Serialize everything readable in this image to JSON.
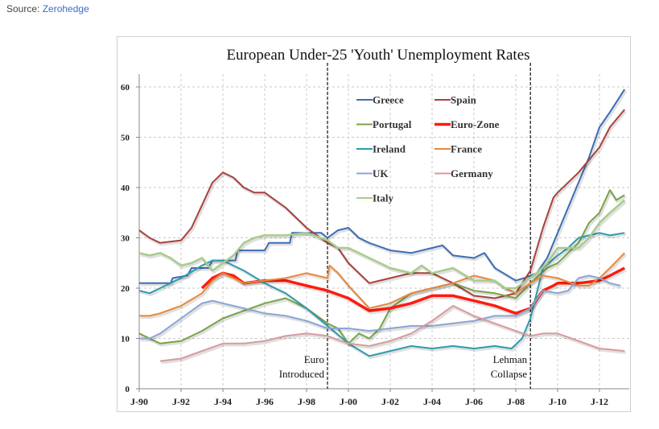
{
  "source": {
    "label": "Source: ",
    "link": "Zerohedge"
  },
  "chart_data": {
    "type": "line",
    "title": "European Under-25 'Youth' Unemployment Rates",
    "xlabel": "",
    "ylabel": "",
    "xlim": [
      1990,
      2013.3
    ],
    "ylim": [
      0,
      63
    ],
    "yticks": [
      0,
      10,
      20,
      30,
      40,
      50,
      60
    ],
    "xticks": [
      {
        "x": 1990,
        "label": "J-90"
      },
      {
        "x": 1992,
        "label": "J-92"
      },
      {
        "x": 1994,
        "label": "J-94"
      },
      {
        "x": 1996,
        "label": "J-96"
      },
      {
        "x": 1998,
        "label": "J-98"
      },
      {
        "x": 2000,
        "label": "J-00"
      },
      {
        "x": 2002,
        "label": "J-02"
      },
      {
        "x": 2004,
        "label": "J-04"
      },
      {
        "x": 2006,
        "label": "J-06"
      },
      {
        "x": 2008,
        "label": "J-08"
      },
      {
        "x": 2010,
        "label": "J-10"
      },
      {
        "x": 2012,
        "label": "J-12"
      }
    ],
    "grid": true,
    "legend": "top-center",
    "annotations": [
      {
        "x": 1999.0,
        "lines": [
          "Euro",
          "Introduced"
        ],
        "style": "dashed-vertical"
      },
      {
        "x": 2008.7,
        "lines": [
          "Lehman",
          "Collapse"
        ],
        "style": "dashed-vertical"
      }
    ],
    "series": [
      {
        "name": "Greece",
        "color": "#3e6db5",
        "width": 2,
        "x": [
          1990,
          1991.5,
          1991.6,
          1992.3,
          1992.5,
          1993.3,
          1993.5,
          1994.6,
          1994.7,
          1996,
          1996.2,
          1997.2,
          1997.3,
          1998.7,
          1999,
          1999.5,
          2000,
          2000.5,
          2001,
          2002,
          2003,
          2004,
          2004.5,
          2005,
          2006,
          2006.5,
          2007,
          2008,
          2008.4,
          2008.7,
          2009,
          2009.5,
          2010,
          2010.5,
          2011,
          2011.5,
          2012,
          2012.5,
          2013.2
        ],
        "y": [
          21,
          21,
          22,
          22.5,
          24,
          24,
          25.5,
          25.5,
          27.5,
          27.5,
          29,
          29,
          31,
          31,
          30,
          31.5,
          32,
          30,
          29,
          27.5,
          27,
          28,
          28.5,
          26.5,
          26,
          27,
          24,
          21.5,
          22,
          22.5,
          23,
          26,
          31,
          36,
          41,
          46,
          52,
          55,
          59.5
        ]
      },
      {
        "name": "Spain",
        "color": "#a9413e",
        "width": 2,
        "x": [
          1990,
          1990.5,
          1991,
          1992,
          1992.5,
          1993,
          1993.5,
          1994,
          1994.5,
          1995,
          1995.5,
          1996,
          1997,
          1998,
          1999,
          1999.5,
          2000,
          2001,
          2001.5,
          2002,
          2003,
          2004,
          2005,
          2006,
          2007,
          2008,
          2008.7,
          2009.3,
          2009.8,
          2010,
          2011,
          2012,
          2012.5,
          2013.2
        ],
        "y": [
          31.5,
          30,
          29,
          29.5,
          32,
          36.5,
          41,
          43,
          42,
          40,
          39,
          39,
          36,
          32,
          29,
          28,
          25,
          21,
          21.5,
          22,
          23,
          23,
          21,
          18.5,
          18,
          19,
          23.5,
          32,
          38,
          39,
          43,
          48,
          52,
          55.5
        ]
      },
      {
        "name": "Portugal",
        "color": "#77a447",
        "width": 2,
        "x": [
          1990,
          1991,
          1992,
          1993,
          1994,
          1995,
          1996,
          1997,
          1998,
          1999,
          1999.5,
          2000,
          2000.5,
          2001,
          2001.5,
          2002,
          2003,
          2004,
          2005,
          2006,
          2007,
          2008,
          2008.7,
          2009.5,
          2010,
          2011,
          2011.5,
          2012,
          2012.5,
          2012.8,
          2013.2
        ],
        "y": [
          11,
          9,
          9.5,
          11.5,
          14,
          15.5,
          17,
          18,
          16,
          13,
          12,
          9,
          11,
          10,
          12,
          16,
          19,
          20,
          21,
          19.5,
          19,
          18,
          21,
          24,
          25,
          29,
          33,
          35,
          39.5,
          37.5,
          38.5
        ]
      },
      {
        "name": "Euro-Zone",
        "color": "#ff1a10",
        "width": 3.5,
        "x": [
          1993,
          1993.5,
          1994,
          1994.5,
          1995,
          1996,
          1997,
          1998,
          1999,
          2000,
          2001,
          2002,
          2003,
          2004,
          2005,
          2006,
          2007,
          2008,
          2008.7,
          2009.3,
          2009.8,
          2010,
          2011,
          2012,
          2012.5,
          2013.2
        ],
        "y": [
          20,
          22,
          23,
          22.5,
          21,
          21.5,
          21.5,
          20.5,
          19.5,
          18,
          15.5,
          16,
          17,
          18.5,
          18.5,
          17.5,
          16.5,
          15,
          16,
          19.5,
          20.5,
          21,
          21,
          21.5,
          22.5,
          24
        ]
      },
      {
        "name": "Ireland",
        "color": "#2e9bad",
        "width": 2,
        "x": [
          1990,
          1990.5,
          1991,
          1992,
          1993,
          1993.5,
          1994,
          1995,
          1996,
          1997,
          1998,
          1999,
          2000,
          2001,
          2002,
          2003,
          2004,
          2005,
          2006,
          2007,
          2007.8,
          2008.3,
          2008.7,
          2009.3,
          2010,
          2010.5,
          2011,
          2012,
          2012.5,
          2013.2
        ],
        "y": [
          19.5,
          19,
          20,
          22,
          24.5,
          25.5,
          25.5,
          23.5,
          21,
          19,
          16,
          12.5,
          9,
          6.5,
          7.5,
          8.5,
          8,
          8.5,
          8,
          8.5,
          8,
          10,
          14,
          24,
          26.5,
          28,
          30,
          31,
          30.5,
          31
        ]
      },
      {
        "name": "France",
        "color": "#e8883a",
        "width": 2,
        "x": [
          1990,
          1990.5,
          1991,
          1992,
          1993,
          1993.5,
          1994,
          1995,
          1996,
          1997,
          1998,
          1999,
          1999.1,
          1999.5,
          2000,
          2001,
          2001.5,
          2002,
          2003,
          2004,
          2005,
          2006,
          2007,
          2007.5,
          2008,
          2008.7,
          2009.3,
          2010,
          2011,
          2011.5,
          2012,
          2012.5,
          2013.2
        ],
        "y": [
          14.5,
          14.5,
          15,
          16.5,
          19,
          21.5,
          23,
          21,
          21.5,
          22,
          23,
          22,
          24.5,
          23,
          20.5,
          16,
          16.5,
          17,
          19,
          20,
          21,
          22.5,
          21.5,
          20,
          19,
          21,
          22.5,
          22,
          20.5,
          20.5,
          22,
          24,
          27
        ]
      },
      {
        "name": "UK",
        "color": "#8aa6d4",
        "width": 2,
        "x": [
          1990,
          1990.5,
          1991,
          1992,
          1993,
          1993.5,
          1994,
          1995,
          1996,
          1997,
          1998,
          1999,
          2000,
          2001,
          2002,
          2003,
          2004,
          2005,
          2006,
          2007,
          2008,
          2008.7,
          2009.3,
          2010,
          2010.5,
          2011,
          2011.5,
          2012,
          2012.5,
          2013
        ],
        "y": [
          10,
          10,
          11,
          14,
          17,
          17.5,
          17,
          16,
          15,
          14.5,
          13.5,
          12,
          12,
          11.5,
          12,
          12.5,
          12.5,
          13,
          13.5,
          14.5,
          14.5,
          16,
          19.5,
          19,
          19.5,
          22,
          22.5,
          22,
          21,
          20.5
        ]
      },
      {
        "name": "Germany",
        "color": "#d89a9d",
        "width": 2,
        "x": [
          1991,
          1992,
          1993,
          1994,
          1995,
          1996,
          1997,
          1998,
          1999,
          2000,
          2001,
          2002,
          2003,
          2004,
          2005,
          2006,
          2007,
          2008,
          2008.7,
          2009.3,
          2010,
          2011,
          2012,
          2013.2
        ],
        "y": [
          5.5,
          6,
          7.5,
          9,
          9,
          9.5,
          10.5,
          11,
          10.5,
          9,
          8.5,
          9.5,
          11,
          13.5,
          16.5,
          14.5,
          13,
          11.5,
          10.5,
          11,
          11,
          9.5,
          8,
          7.5
        ]
      },
      {
        "name": "Italy",
        "color": "#a8cc8c",
        "width": 2.5,
        "x": [
          1990,
          1990.5,
          1991,
          1991.5,
          1992,
          1992.5,
          1993,
          1993.5,
          1994,
          1994.5,
          1995,
          1995.5,
          1996,
          1997,
          1998,
          1999,
          1999.5,
          2000,
          2001,
          2002,
          2003,
          2003.5,
          2004,
          2005,
          2006,
          2007,
          2007.5,
          2008,
          2008.5,
          2009,
          2009.5,
          2010,
          2011,
          2011.5,
          2012,
          2012.5,
          2013.2
        ],
        "y": [
          27,
          26.5,
          27,
          26,
          24.5,
          25,
          26,
          23.5,
          25,
          26.5,
          29,
          30,
          30.5,
          30.5,
          31,
          29.5,
          28,
          28,
          26,
          24,
          23,
          24.5,
          23,
          24,
          21.5,
          21.5,
          20,
          20,
          21.5,
          23,
          25,
          28,
          28,
          30,
          33,
          35,
          37.5
        ]
      }
    ]
  }
}
